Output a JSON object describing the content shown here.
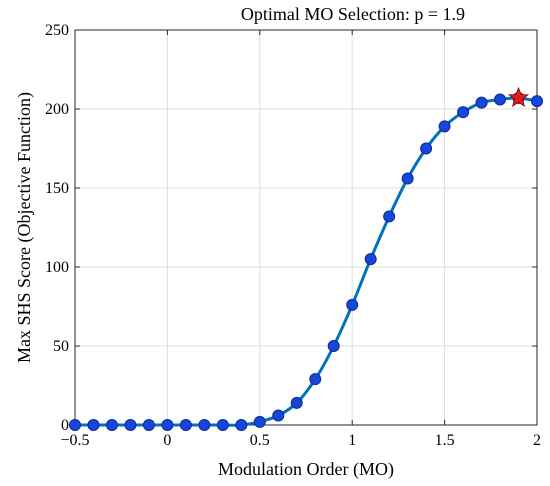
{
  "chart_data": {
    "type": "line",
    "title": "Optimal MO Selection: p = 1.9",
    "xlabel": "Modulation Order (MO)",
    "ylabel": "Max SHS Score (Objective Function)",
    "xlim": [
      -0.5,
      2
    ],
    "ylim": [
      0,
      250
    ],
    "xticks": [
      -0.5,
      0,
      0.5,
      1,
      1.5,
      2
    ],
    "xtick_labels": [
      "−0.5",
      "0",
      "0.5",
      "1",
      "1.5",
      "2"
    ],
    "yticks": [
      0,
      50,
      100,
      150,
      200,
      250
    ],
    "ytick_labels": [
      "0",
      "50",
      "100",
      "150",
      "200",
      "250"
    ],
    "grid": true,
    "legend": "none",
    "series": [
      {
        "line_color": "#0072BD",
        "marker_color": "#1846D8",
        "marker_edge": "#0a2a9a",
        "x": [
          -0.5,
          -0.4,
          -0.3,
          -0.2,
          -0.1,
          0,
          0.1,
          0.2,
          0.3,
          0.4,
          0.5,
          0.6,
          0.7,
          0.8,
          0.9,
          1.0,
          1.1,
          1.2,
          1.3,
          1.4,
          1.5,
          1.6,
          1.7,
          1.8,
          1.9,
          2.0
        ],
        "y": [
          0,
          0,
          0,
          0,
          0,
          0,
          0,
          0,
          0,
          0,
          2,
          6,
          14,
          29,
          50,
          76,
          105,
          132,
          156,
          175,
          189,
          198,
          204,
          206,
          207,
          205
        ]
      }
    ],
    "optimum": {
      "x": 1.9,
      "y": 207,
      "color": "#E41A1C"
    }
  }
}
